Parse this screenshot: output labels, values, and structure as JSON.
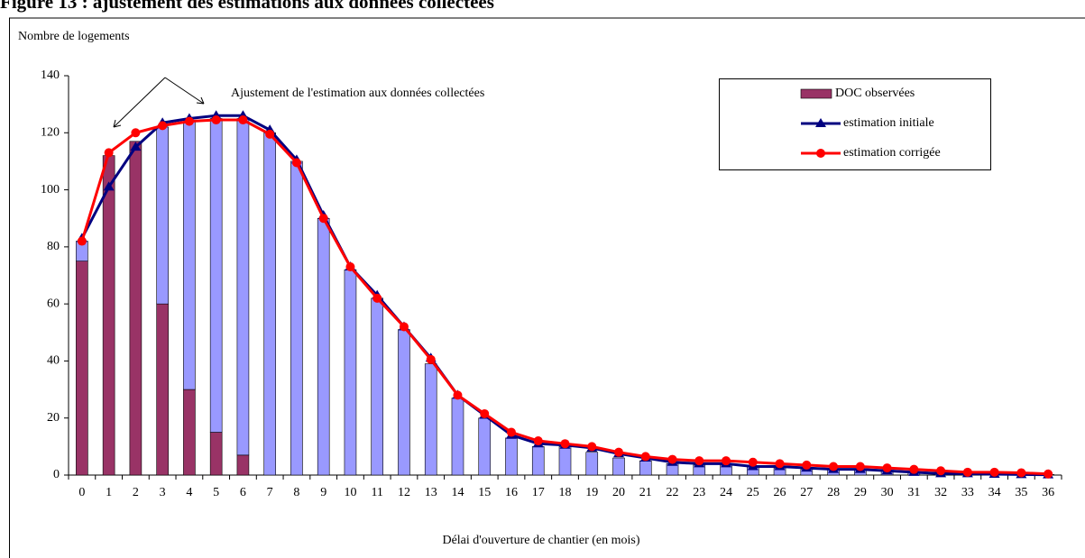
{
  "chart_data": {
    "type": "bar-line",
    "title": "Figure 13 : ajustement des estimations aux données collectées",
    "y_label": "Nombre de logements",
    "x_label": "Délai d'ouverture de chantier (en mois)",
    "annotation": "Ajustement de l'estimation aux données collectées",
    "categories": [
      "0",
      "1",
      "2",
      "3",
      "4",
      "5",
      "6",
      "7",
      "8",
      "9",
      "10",
      "11",
      "12",
      "13",
      "14",
      "15",
      "16",
      "17",
      "18",
      "19",
      "20",
      "21",
      "22",
      "23",
      "24",
      "25",
      "26",
      "27",
      "28",
      "29",
      "30",
      "31",
      "32",
      "33",
      "34",
      "35",
      "36"
    ],
    "ylim": [
      0,
      140
    ],
    "yticks": [
      0,
      20,
      40,
      60,
      80,
      100,
      120,
      140
    ],
    "series": [
      {
        "name": "DOC observées",
        "type": "bar",
        "color": "#993366",
        "values": [
          75,
          112,
          117,
          60,
          30,
          15,
          7,
          0,
          0,
          0,
          0,
          0,
          0,
          0,
          0,
          0,
          0,
          0,
          0,
          0,
          0,
          0,
          0,
          0,
          0,
          0,
          0,
          0,
          0,
          0,
          0,
          0,
          0,
          0,
          0,
          0,
          0
        ]
      },
      {
        "type": "bar",
        "color": "#9999ff",
        "values": [
          7,
          0,
          0,
          62,
          94,
          110,
          118,
          120,
          110,
          90,
          72,
          62,
          51,
          39,
          27,
          20,
          13,
          10,
          10,
          8,
          6,
          5,
          4,
          3.5,
          3.5,
          3,
          2.5,
          2,
          2,
          2,
          1.5,
          1,
          1,
          0.5,
          0.5,
          0.3,
          0.2
        ]
      },
      {
        "name": "estimation initiale",
        "type": "line",
        "marker": "triangle",
        "color": "#000080",
        "values": [
          83,
          101,
          115,
          123.5,
          125,
          126,
          126,
          121,
          110.5,
          91,
          73,
          63,
          52,
          41,
          28,
          21,
          14,
          11,
          10.5,
          9.5,
          7.5,
          6,
          4.5,
          4,
          4,
          3,
          3,
          2.5,
          2,
          2,
          1.5,
          1,
          0.5,
          0.5,
          0.3,
          0.2,
          0.1
        ]
      },
      {
        "name": "estimation corrigée",
        "type": "line",
        "marker": "circle",
        "color": "#ff0000",
        "values": [
          82,
          113,
          120,
          122.5,
          124,
          124.5,
          124.5,
          119.5,
          109.5,
          90,
          73,
          62,
          52,
          40.5,
          28,
          21.5,
          15,
          12,
          11,
          10,
          8,
          6.5,
          5.5,
          5,
          5,
          4.5,
          4,
          3.5,
          3,
          3,
          2.5,
          2,
          1.5,
          1,
          1,
          0.8,
          0.4
        ]
      }
    ]
  }
}
